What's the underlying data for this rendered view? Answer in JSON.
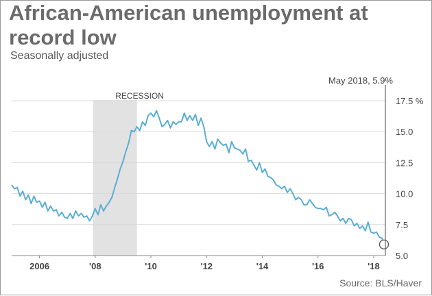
{
  "header": {
    "title": "African-American unemployment at record low",
    "subtitle": "Seasonally adjusted"
  },
  "footer": {
    "source": "Source: BLS/Haver"
  },
  "colors": {
    "line": "#5aaed3",
    "recession": "#e2e2e2",
    "grid": "#dadada",
    "title": "#6b6b6b"
  },
  "chart_data": {
    "type": "line",
    "title": "African-American unemployment at record low",
    "subtitle": "Seasonally adjusted",
    "xlabel": "",
    "ylabel": "",
    "x_range": [
      2005.0,
      2018.42
    ],
    "ylim": [
      5,
      17.5
    ],
    "yticks": [
      5.0,
      7.5,
      10.0,
      12.5,
      15.0,
      17.5
    ],
    "ytick_labels": [
      "5.0",
      "7.5",
      "10.0",
      "12.5",
      "15.0",
      "17.5 %"
    ],
    "xticks": [
      2006,
      2008,
      2010,
      2012,
      2014,
      2016,
      2018
    ],
    "xtick_labels": [
      "2006",
      "'08",
      "'10",
      "'12",
      "'14",
      "'16",
      "'18"
    ],
    "grid": true,
    "recession": {
      "label": "RECESSION",
      "start": 2007.92,
      "end": 2009.5
    },
    "annotation": {
      "label": "May 2018, 5.9%",
      "x": 2018.37,
      "y": 5.9
    },
    "series": [
      {
        "x": [
          2005.0,
          2005.1,
          2005.2,
          2005.3,
          2005.4,
          2005.5,
          2005.6,
          2005.7,
          2005.8,
          2005.9,
          2006.0,
          2006.1,
          2006.2,
          2006.3,
          2006.4,
          2006.5,
          2006.6,
          2006.7,
          2006.8,
          2006.9,
          2007.0,
          2007.1,
          2007.2,
          2007.3,
          2007.4,
          2007.5,
          2007.6,
          2007.7,
          2007.8,
          2007.9,
          2008.0,
          2008.1,
          2008.2,
          2008.3,
          2008.4,
          2008.5,
          2008.6,
          2008.7,
          2008.8,
          2008.9,
          2009.0,
          2009.1,
          2009.2,
          2009.3,
          2009.4,
          2009.5,
          2009.6,
          2009.7,
          2009.8,
          2009.9,
          2010.0,
          2010.1,
          2010.2,
          2010.3,
          2010.4,
          2010.5,
          2010.6,
          2010.7,
          2010.8,
          2010.9,
          2011.0,
          2011.1,
          2011.2,
          2011.3,
          2011.4,
          2011.5,
          2011.6,
          2011.7,
          2011.8,
          2011.9,
          2012.0,
          2012.1,
          2012.2,
          2012.3,
          2012.4,
          2012.5,
          2012.6,
          2012.7,
          2012.8,
          2012.9,
          2013.0,
          2013.1,
          2013.2,
          2013.3,
          2013.4,
          2013.5,
          2013.6,
          2013.7,
          2013.8,
          2013.9,
          2014.0,
          2014.1,
          2014.2,
          2014.3,
          2014.4,
          2014.5,
          2014.6,
          2014.7,
          2014.8,
          2014.9,
          2015.0,
          2015.1,
          2015.2,
          2015.3,
          2015.4,
          2015.5,
          2015.6,
          2015.7,
          2015.8,
          2015.9,
          2016.0,
          2016.1,
          2016.2,
          2016.3,
          2016.4,
          2016.5,
          2016.6,
          2016.7,
          2016.8,
          2016.9,
          2017.0,
          2017.1,
          2017.2,
          2017.3,
          2017.4,
          2017.5,
          2017.6,
          2017.7,
          2017.8,
          2017.9,
          2018.0,
          2018.1,
          2018.2,
          2018.3,
          2018.37
        ],
        "values": [
          10.7,
          10.4,
          10.5,
          9.8,
          10.2,
          9.5,
          9.9,
          9.2,
          9.8,
          9.3,
          9.4,
          8.9,
          9.3,
          8.6,
          9.0,
          8.6,
          8.7,
          8.2,
          8.5,
          8.1,
          8.0,
          8.4,
          8.0,
          8.6,
          8.2,
          8.4,
          8.1,
          8.2,
          7.8,
          8.2,
          8.8,
          8.3,
          9.1,
          8.6,
          9.0,
          9.3,
          9.7,
          10.5,
          11.2,
          12.0,
          12.6,
          13.4,
          14.1,
          15.1,
          15.0,
          15.4,
          15.1,
          15.8,
          15.5,
          16.3,
          16.5,
          16.2,
          16.7,
          16.1,
          15.4,
          15.6,
          15.9,
          15.3,
          15.8,
          15.6,
          15.8,
          15.8,
          16.5,
          15.9,
          16.3,
          15.9,
          16.4,
          15.5,
          16.1,
          15.4,
          14.2,
          13.8,
          14.2,
          13.6,
          14.4,
          14.1,
          13.9,
          14.0,
          13.3,
          14.2,
          13.7,
          13.6,
          13.5,
          13.2,
          13.6,
          12.6,
          12.7,
          12.3,
          11.9,
          12.5,
          11.7,
          12.0,
          11.4,
          11.3,
          11.1,
          10.7,
          10.6,
          10.4,
          10.6,
          10.1,
          10.4,
          10.0,
          9.5,
          9.7,
          9.5,
          9.1,
          9.1,
          9.5,
          9.2,
          8.9,
          8.8,
          8.8,
          8.7,
          8.9,
          8.2,
          8.3,
          8.5,
          8.2,
          7.8,
          8.0,
          7.6,
          8.0,
          7.9,
          7.4,
          7.6,
          7.2,
          7.4,
          7.0,
          7.7,
          6.9,
          6.8,
          6.9,
          6.5,
          6.4,
          5.9
        ]
      }
    ]
  }
}
